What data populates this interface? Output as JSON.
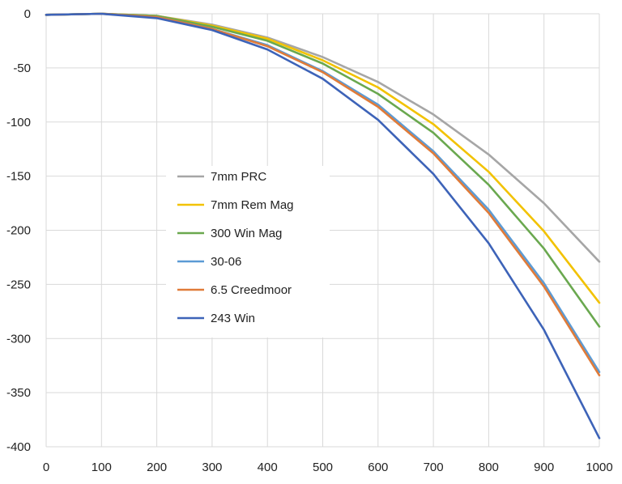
{
  "chart_data": {
    "type": "line",
    "title": "",
    "xlabel": "",
    "ylabel": "",
    "x": [
      0,
      100,
      200,
      300,
      400,
      500,
      600,
      700,
      800,
      900,
      1000
    ],
    "xlim": [
      0,
      1000
    ],
    "ylim": [
      -400,
      0
    ],
    "x_ticks": [
      0,
      100,
      200,
      300,
      400,
      500,
      600,
      700,
      800,
      900,
      1000
    ],
    "y_ticks": [
      0,
      -50,
      -100,
      -150,
      -200,
      -250,
      -300,
      -350,
      -400
    ],
    "grid": true,
    "legend_position": "center-left",
    "series": [
      {
        "name": "7mm PRC",
        "color": "#a6a6a6",
        "values": [
          -1,
          0,
          -2,
          -10,
          -22,
          -40,
          -63,
          -93,
          -130,
          -175,
          -229
        ]
      },
      {
        "name": "7mm Rem Mag",
        "color": "#f2c200",
        "values": [
          -1,
          0,
          -2,
          -11,
          -23,
          -43,
          -68,
          -102,
          -146,
          -201,
          -267
        ]
      },
      {
        "name": "300 Win Mag",
        "color": "#6aa84f",
        "values": [
          -1,
          0,
          -2,
          -12,
          -25,
          -46,
          -74,
          -110,
          -158,
          -217,
          -289
        ]
      },
      {
        "name": "30-06",
        "color": "#5b9bd5",
        "values": [
          -1,
          0,
          -3,
          -14,
          -29,
          -53,
          -84,
          -127,
          -181,
          -249,
          -331
        ]
      },
      {
        "name": "6.5 Creedmoor",
        "color": "#e07b39",
        "values": [
          -1,
          0,
          -3,
          -14,
          -30,
          -54,
          -86,
          -129,
          -184,
          -252,
          -334
        ]
      },
      {
        "name": "243 Win",
        "color": "#3d63b8",
        "values": [
          -1,
          0,
          -4,
          -15,
          -33,
          -60,
          -98,
          -148,
          -212,
          -292,
          -392
        ]
      }
    ]
  }
}
